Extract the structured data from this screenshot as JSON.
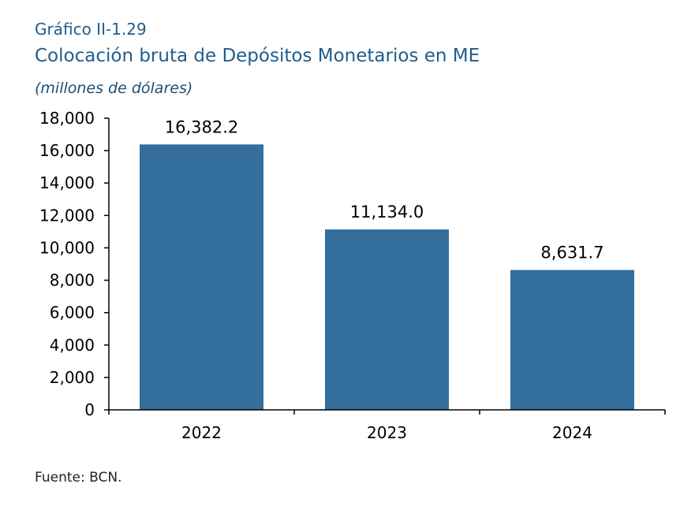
{
  "figure": {
    "label": "Gráfico II-1.29",
    "title": "Colocación bruta de Depósitos Monetarios en ME",
    "units": "(millones de dólares)",
    "source": "Fuente: BCN."
  },
  "chart_data": {
    "type": "bar",
    "categories": [
      "2022",
      "2023",
      "2024"
    ],
    "values": [
      16382.2,
      11134.0,
      8631.7
    ],
    "value_labels": [
      "16,382.2",
      "11,134.0",
      "8,631.7"
    ],
    "ylim": [
      0,
      18000
    ],
    "yticks": [
      0,
      2000,
      4000,
      6000,
      8000,
      10000,
      12000,
      14000,
      16000,
      18000
    ],
    "ytick_labels": [
      "0",
      "2,000",
      "4,000",
      "6,000",
      "8,000",
      "10,000",
      "12,000",
      "14,000",
      "16,000",
      "18,000"
    ],
    "bar_color": "#336e9c",
    "grid": false,
    "legend": "none"
  }
}
